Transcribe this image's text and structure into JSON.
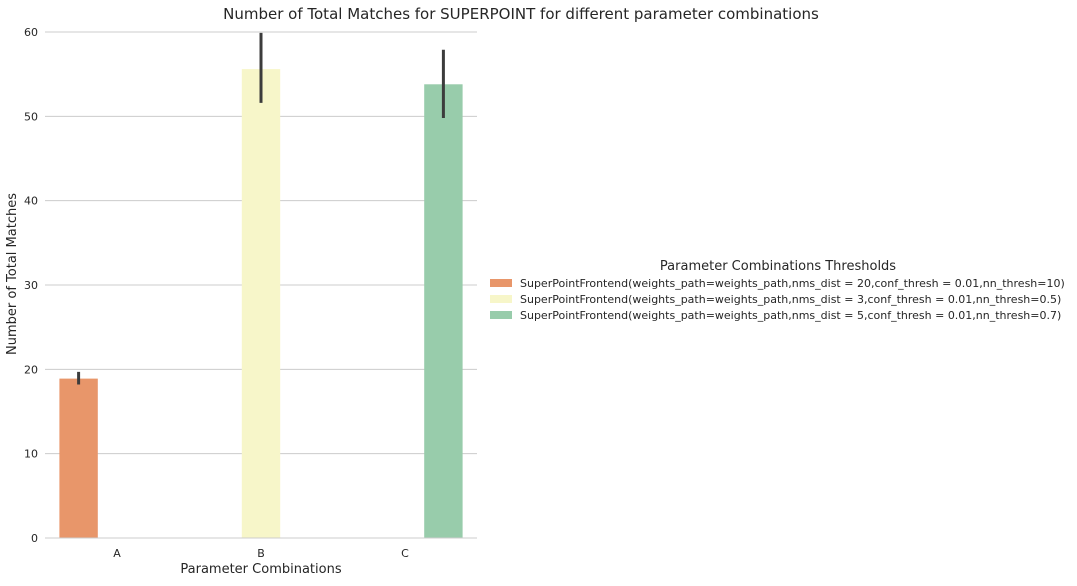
{
  "chart_data": {
    "type": "bar",
    "title": "Number of Total Matches for SUPERPOINT for different parameter combinations",
    "xlabel": "Parameter Combinations",
    "ylabel": "Number of Total Matches",
    "categories": [
      "A",
      "B",
      "C"
    ],
    "ylim": [
      0,
      60
    ],
    "yticks": [
      0,
      10,
      20,
      30,
      40,
      50,
      60
    ],
    "grid": "horizontal",
    "legend": {
      "title": "Parameter Combinations Thresholds",
      "placement": "right"
    },
    "series": [
      {
        "name": "SuperPointFrontend(weights_path=weights_path,nms_dist = 20,conf_thresh = 0.01,nn_thresh=10)",
        "color": "#e8966a",
        "category": "A",
        "value": 18.9,
        "error": [
          18.2,
          19.7
        ]
      },
      {
        "name": "SuperPointFrontend(weights_path=weights_path,nms_dist = 3,conf_thresh = 0.01,nn_thresh=0.5)",
        "color": "#f7f6c9",
        "category": "B",
        "value": 55.6,
        "error": [
          51.6,
          59.9
        ]
      },
      {
        "name": "SuperPointFrontend(weights_path=weights_path,nms_dist = 5,conf_thresh = 0.01,nn_thresh=0.7)",
        "color": "#98ccab",
        "category": "C",
        "value": 53.8,
        "error": [
          49.8,
          57.9
        ]
      }
    ]
  }
}
